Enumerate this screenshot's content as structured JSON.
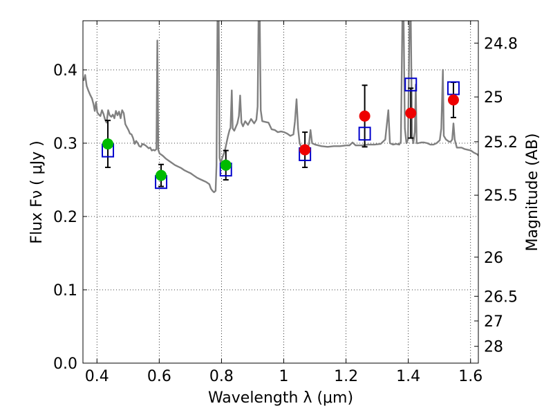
{
  "chart_data": {
    "type": "scatter",
    "xlabel": "Wavelength  λ (μm)",
    "ylabel": "Flux  Fν  ( μJy )",
    "y2label": "Magnitude (AB)",
    "xlim": [
      0.355,
      1.625
    ],
    "ylim": [
      0.0,
      0.467
    ],
    "xticks": [
      0.4,
      0.6,
      0.8,
      1.0,
      1.2,
      1.4,
      1.6
    ],
    "xtick_labels": [
      "0.4",
      "0.6",
      "0.8",
      "1",
      "1.2",
      "1.4",
      "1.6"
    ],
    "yticks": [
      0.0,
      0.1,
      0.2,
      0.3,
      0.4
    ],
    "ytick_labels": [
      "0.0",
      "0.1",
      "0.2",
      "0.3",
      "0.4"
    ],
    "mag_ticks": [
      24.8,
      25.0,
      25.2,
      25.5,
      26.0,
      26.5,
      27.0,
      28.0
    ],
    "mag_tick_labels": [
      "24.8",
      "25",
      "25.2",
      "25.5",
      "26",
      "26.5",
      "27",
      "28"
    ],
    "grid": true,
    "colors": {
      "spectrum": "#808080",
      "green": "#00bb00",
      "red": "#ee0000",
      "model_box": "#0000cc",
      "errorbar": "#000000"
    },
    "spectrum": [
      [
        0.357,
        0.385
      ],
      [
        0.362,
        0.393
      ],
      [
        0.367,
        0.378
      ],
      [
        0.372,
        0.372
      ],
      [
        0.378,
        0.366
      ],
      [
        0.384,
        0.361
      ],
      [
        0.389,
        0.353
      ],
      [
        0.393,
        0.344
      ],
      [
        0.397,
        0.356
      ],
      [
        0.401,
        0.342
      ],
      [
        0.406,
        0.339
      ],
      [
        0.411,
        0.337
      ],
      [
        0.416,
        0.345
      ],
      [
        0.421,
        0.34
      ],
      [
        0.426,
        0.332
      ],
      [
        0.431,
        0.328
      ],
      [
        0.436,
        0.345
      ],
      [
        0.441,
        0.338
      ],
      [
        0.446,
        0.336
      ],
      [
        0.451,
        0.339
      ],
      [
        0.456,
        0.334
      ],
      [
        0.461,
        0.344
      ],
      [
        0.466,
        0.338
      ],
      [
        0.471,
        0.343
      ],
      [
        0.476,
        0.334
      ],
      [
        0.481,
        0.345
      ],
      [
        0.486,
        0.341
      ],
      [
        0.491,
        0.326
      ],
      [
        0.496,
        0.322
      ],
      [
        0.501,
        0.318
      ],
      [
        0.506,
        0.313
      ],
      [
        0.511,
        0.312
      ],
      [
        0.516,
        0.307
      ],
      [
        0.521,
        0.299
      ],
      [
        0.526,
        0.303
      ],
      [
        0.531,
        0.3
      ],
      [
        0.536,
        0.296
      ],
      [
        0.541,
        0.295
      ],
      [
        0.546,
        0.299
      ],
      [
        0.551,
        0.298
      ],
      [
        0.556,
        0.297
      ],
      [
        0.561,
        0.295
      ],
      [
        0.566,
        0.293
      ],
      [
        0.571,
        0.294
      ],
      [
        0.576,
        0.29
      ],
      [
        0.581,
        0.291
      ],
      [
        0.586,
        0.29
      ],
      [
        0.591,
        0.292
      ],
      [
        0.594,
        0.44
      ],
      [
        0.597,
        0.291
      ],
      [
        0.601,
        0.286
      ],
      [
        0.611,
        0.283
      ],
      [
        0.621,
        0.279
      ],
      [
        0.631,
        0.276
      ],
      [
        0.641,
        0.273
      ],
      [
        0.651,
        0.27
      ],
      [
        0.661,
        0.268
      ],
      [
        0.671,
        0.266
      ],
      [
        0.681,
        0.263
      ],
      [
        0.691,
        0.261
      ],
      [
        0.701,
        0.259
      ],
      [
        0.711,
        0.256
      ],
      [
        0.721,
        0.253
      ],
      [
        0.731,
        0.251
      ],
      [
        0.741,
        0.249
      ],
      [
        0.751,
        0.247
      ],
      [
        0.761,
        0.244
      ],
      [
        0.766,
        0.238
      ],
      [
        0.771,
        0.235
      ],
      [
        0.776,
        0.233
      ],
      [
        0.781,
        0.235
      ],
      [
        0.784,
        0.27
      ],
      [
        0.787,
        0.467
      ],
      [
        0.791,
        0.467
      ],
      [
        0.794,
        0.28
      ],
      [
        0.798,
        0.272
      ],
      [
        0.801,
        0.278
      ],
      [
        0.806,
        0.284
      ],
      [
        0.811,
        0.29
      ],
      [
        0.816,
        0.3
      ],
      [
        0.821,
        0.31
      ],
      [
        0.826,
        0.318
      ],
      [
        0.829,
        0.321
      ],
      [
        0.833,
        0.372
      ],
      [
        0.836,
        0.32
      ],
      [
        0.841,
        0.317
      ],
      [
        0.846,
        0.322
      ],
      [
        0.851,
        0.327
      ],
      [
        0.856,
        0.337
      ],
      [
        0.86,
        0.365
      ],
      [
        0.864,
        0.328
      ],
      [
        0.869,
        0.323
      ],
      [
        0.876,
        0.33
      ],
      [
        0.885,
        0.325
      ],
      [
        0.895,
        0.333
      ],
      [
        0.905,
        0.327
      ],
      [
        0.912,
        0.332
      ],
      [
        0.916,
        0.35
      ],
      [
        0.919,
        0.467
      ],
      [
        0.923,
        0.467
      ],
      [
        0.926,
        0.345
      ],
      [
        0.931,
        0.33
      ],
      [
        0.941,
        0.329
      ],
      [
        0.951,
        0.328
      ],
      [
        0.961,
        0.319
      ],
      [
        0.971,
        0.318
      ],
      [
        0.981,
        0.315
      ],
      [
        0.991,
        0.316
      ],
      [
        1.001,
        0.315
      ],
      [
        1.011,
        0.313
      ],
      [
        1.021,
        0.31
      ],
      [
        1.031,
        0.312
      ],
      [
        1.036,
        0.33
      ],
      [
        1.041,
        0.36
      ],
      [
        1.046,
        0.32
      ],
      [
        1.051,
        0.3
      ],
      [
        1.056,
        0.295
      ],
      [
        1.061,
        0.294
      ],
      [
        1.067,
        0.29
      ],
      [
        1.075,
        0.292
      ],
      [
        1.081,
        0.299
      ],
      [
        1.086,
        0.318
      ],
      [
        1.091,
        0.3
      ],
      [
        1.101,
        0.298
      ],
      [
        1.121,
        0.296
      ],
      [
        1.141,
        0.295
      ],
      [
        1.161,
        0.296
      ],
      [
        1.181,
        0.296
      ],
      [
        1.201,
        0.297
      ],
      [
        1.211,
        0.297
      ],
      [
        1.221,
        0.301
      ],
      [
        1.231,
        0.297
      ],
      [
        1.251,
        0.297
      ],
      [
        1.271,
        0.298
      ],
      [
        1.291,
        0.298
      ],
      [
        1.311,
        0.299
      ],
      [
        1.326,
        0.305
      ],
      [
        1.336,
        0.345
      ],
      [
        1.341,
        0.3
      ],
      [
        1.351,
        0.298
      ],
      [
        1.361,
        0.299
      ],
      [
        1.371,
        0.298
      ],
      [
        1.376,
        0.302
      ],
      [
        1.381,
        0.467
      ],
      [
        1.385,
        0.467
      ],
      [
        1.389,
        0.32
      ],
      [
        1.394,
        0.3
      ],
      [
        1.399,
        0.305
      ],
      [
        1.404,
        0.467
      ],
      [
        1.408,
        0.467
      ],
      [
        1.412,
        0.31
      ],
      [
        1.416,
        0.3
      ],
      [
        1.421,
        0.315
      ],
      [
        1.424,
        0.38
      ],
      [
        1.427,
        0.3
      ],
      [
        1.431,
        0.3
      ],
      [
        1.441,
        0.301
      ],
      [
        1.451,
        0.301
      ],
      [
        1.461,
        0.3
      ],
      [
        1.471,
        0.298
      ],
      [
        1.481,
        0.298
      ],
      [
        1.491,
        0.3
      ],
      [
        1.501,
        0.304
      ],
      [
        1.506,
        0.32
      ],
      [
        1.511,
        0.4
      ],
      [
        1.514,
        0.31
      ],
      [
        1.521,
        0.305
      ],
      [
        1.531,
        0.302
      ],
      [
        1.536,
        0.302
      ],
      [
        1.541,
        0.305
      ],
      [
        1.545,
        0.327
      ],
      [
        1.549,
        0.305
      ],
      [
        1.556,
        0.294
      ],
      [
        1.571,
        0.294
      ],
      [
        1.581,
        0.292
      ],
      [
        1.591,
        0.291
      ],
      [
        1.601,
        0.29
      ],
      [
        1.611,
        0.287
      ],
      [
        1.621,
        0.285
      ],
      [
        1.625,
        0.283
      ]
    ],
    "observed": [
      {
        "x": 0.435,
        "y": 0.299,
        "err": 0.032,
        "color": "green"
      },
      {
        "x": 0.606,
        "y": 0.256,
        "err": 0.015,
        "color": "green"
      },
      {
        "x": 0.814,
        "y": 0.27,
        "err": 0.02,
        "color": "green"
      },
      {
        "x": 1.068,
        "y": 0.291,
        "err": 0.024,
        "color": "red"
      },
      {
        "x": 1.26,
        "y": 0.337,
        "err": 0.042,
        "color": "red"
      },
      {
        "x": 1.408,
        "y": 0.341,
        "err": 0.034,
        "color": "red"
      },
      {
        "x": 1.545,
        "y": 0.359,
        "err": 0.024,
        "color": "red"
      }
    ],
    "model": [
      {
        "x": 0.435,
        "y": 0.29
      },
      {
        "x": 0.606,
        "y": 0.247
      },
      {
        "x": 0.814,
        "y": 0.264
      },
      {
        "x": 1.068,
        "y": 0.285
      },
      {
        "x": 1.26,
        "y": 0.313
      },
      {
        "x": 1.408,
        "y": 0.38
      },
      {
        "x": 1.545,
        "y": 0.375
      }
    ]
  }
}
